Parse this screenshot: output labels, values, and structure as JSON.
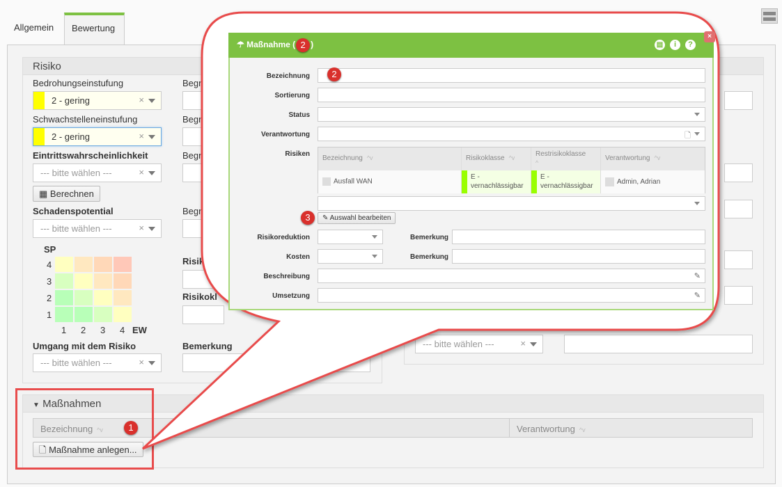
{
  "tabs": [
    {
      "label": "Allgemein"
    },
    {
      "label": "Bewertung",
      "active": true
    }
  ],
  "risiko": {
    "title": "Risiko",
    "bedrohung": {
      "label": "Bedrohungseinstufung",
      "value": "2 - gering",
      "color": "#ffff00"
    },
    "schwachstelle": {
      "label": "Schwachstelleneinstufung",
      "value": "2 - gering",
      "color": "#ffff00"
    },
    "eintritt": {
      "label": "Eintrittswahrscheinlichkeit",
      "placeholder": "--- bitte wählen ---"
    },
    "berechnen": "Berechnen",
    "schaden": {
      "label": "Schadenspotential",
      "placeholder": "--- bitte wählen ---"
    },
    "matrix": {
      "ylabel": "SP",
      "xlabel": "EW",
      "rows": [
        "4",
        "3",
        "2",
        "1"
      ],
      "cols": [
        "1",
        "2",
        "3",
        "4"
      ],
      "colors": [
        [
          "#ffffc0",
          "#ffe8c0",
          "#ffd8b8",
          "#ffc8b8"
        ],
        [
          "#d8ffc0",
          "#ffffc0",
          "#ffe8c0",
          "#ffd8b8"
        ],
        [
          "#b8ffb8",
          "#d8ffc0",
          "#ffffc0",
          "#ffe8c0"
        ],
        [
          "#b8ffb8",
          "#b8ffb8",
          "#d8ffc0",
          "#ffffc0"
        ]
      ]
    },
    "umgang": {
      "label": "Umgang mit dem Risiko",
      "placeholder": "--- bitte wählen ---"
    },
    "begr": "Begr",
    "risik": "Risik",
    "risikokl": "Risikokl",
    "bemerkung": "Bemerkung",
    "right_select_placeholder": "--- bitte wählen ---",
    "clear": "×"
  },
  "massnahmen": {
    "title": "Maßnahmen",
    "col_bezeichnung": "Bezeichnung",
    "col_verantwortung": "Verantwortung",
    "sort": "^v",
    "button": "Maßnahme anlegen..."
  },
  "dialog": {
    "title": "Maßnahme (",
    "title_end": ")",
    "fields": {
      "bezeichnung": "Bezeichnung",
      "sortierung": "Sortierung",
      "status": "Status",
      "verantwortung": "Verantwortung",
      "risiken": "Risiken",
      "risikoreduktion": "Risikoreduktion",
      "bemerkung": "Bemerkung",
      "kosten": "Kosten",
      "beschreibung": "Beschreibung",
      "umsetzung": "Umsetzung"
    },
    "table": {
      "headers": [
        "Bezeichnung",
        "Risikoklasse",
        "Restrisikoklasse",
        "Verantwortung"
      ],
      "row": {
        "bezeichnung": "Ausfall WAN",
        "risikoklasse": "E - vernachlässigbar",
        "restrisikoklasse": "E - vernachlässigbar",
        "verantwortung": "Admin, Adrian"
      },
      "class_color": "#99ff00"
    },
    "auswahl_button": "Auswahl bearbeiten",
    "header_color": "#7dc142"
  },
  "badges": [
    "1",
    "2",
    "2",
    "3"
  ],
  "accent_red": "#e84c4c"
}
